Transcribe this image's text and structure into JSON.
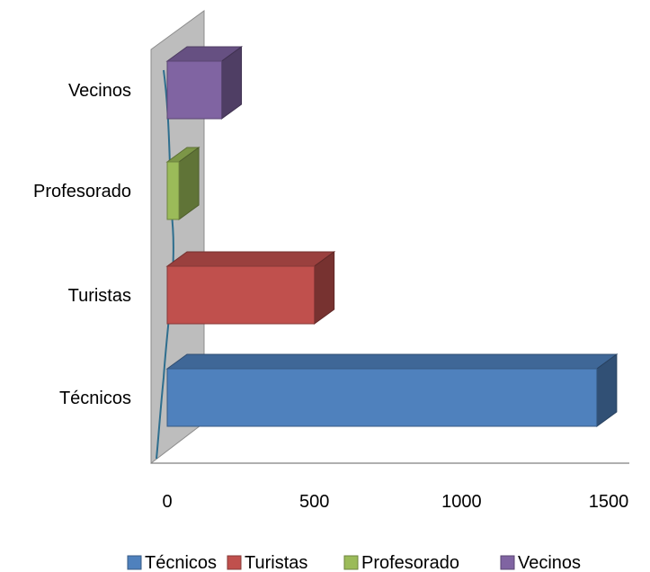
{
  "chart_data": {
    "type": "bar",
    "orientation": "horizontal",
    "three_d": true,
    "categories": [
      "Técnicos",
      "Turistas",
      "Profesorado",
      "Vecinos"
    ],
    "series": [
      {
        "name": "Técnicos",
        "category": "Técnicos",
        "value": 1460,
        "color": "#4F81BD"
      },
      {
        "name": "Turistas",
        "category": "Turistas",
        "value": 500,
        "color": "#C0504D"
      },
      {
        "name": "Profesorado",
        "category": "Profesorado",
        "value": 40,
        "color": "#9BBB59"
      },
      {
        "name": "Vecinos",
        "category": "Vecinos",
        "value": 185,
        "color": "#8064A2"
      }
    ],
    "xlim": [
      0,
      1500
    ],
    "xticks": [
      "0",
      "500",
      "1000",
      "1500"
    ],
    "grid": false,
    "legend": {
      "position": "bottom"
    },
    "title": "",
    "xlabel": "",
    "ylabel": ""
  }
}
